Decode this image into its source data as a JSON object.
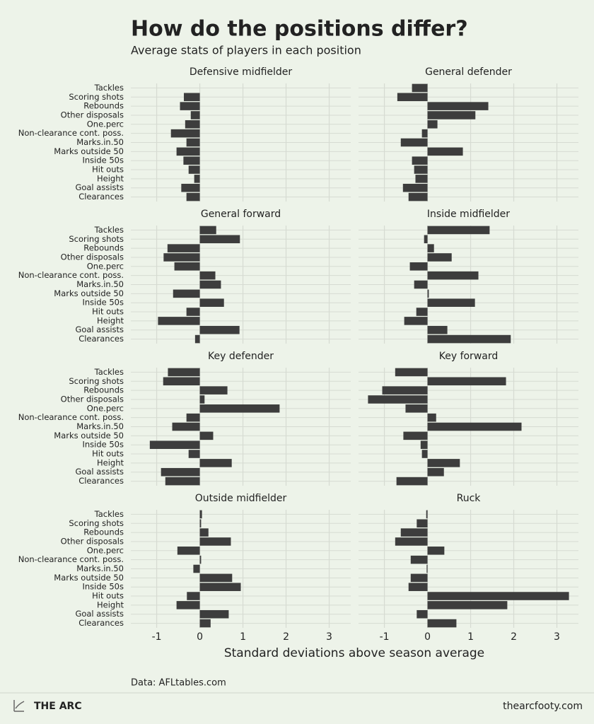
{
  "chart_data": {
    "type": "bar",
    "orientation": "horizontal",
    "title": "How do the positions differ?",
    "subtitle": "Average stats of players in each position",
    "xlabel": "Standard deviations above season average",
    "source": "Data: AFLtables.com",
    "brand": "THE ARC",
    "url": "thearcfooty.com",
    "color": "#3d3d3d",
    "grid": true,
    "categories": [
      "Tackles",
      "Scoring shots",
      "Rebounds",
      "Other disposals",
      "One.perc",
      "Non-clearance cont. poss.",
      "Marks.in.50",
      "Marks outside 50",
      "Inside 50s",
      "Hit outs",
      "Height",
      "Goal assists",
      "Clearances"
    ],
    "xlim": [
      -1.6,
      3.5
    ],
    "xticks": [
      -1,
      0,
      1,
      2,
      3
    ],
    "panels": [
      {
        "title": "Defensive midfielder",
        "values": [
          0,
          -0.37,
          -0.46,
          -0.21,
          -0.34,
          -0.67,
          -0.31,
          -0.54,
          -0.38,
          -0.26,
          -0.13,
          -0.43,
          -0.31
        ]
      },
      {
        "title": "General defender",
        "values": [
          -0.36,
          -0.7,
          1.41,
          1.11,
          0.23,
          -0.13,
          -0.62,
          0.82,
          -0.36,
          -0.31,
          -0.28,
          -0.57,
          -0.44
        ]
      },
      {
        "title": "General forward",
        "values": [
          0.38,
          0.93,
          -0.75,
          -0.84,
          -0.59,
          0.36,
          0.49,
          -0.62,
          0.56,
          -0.31,
          -0.97,
          0.92,
          -0.11
        ]
      },
      {
        "title": "Inside midfielder",
        "values": [
          1.44,
          -0.08,
          0.15,
          0.56,
          -0.41,
          1.18,
          -0.31,
          0.03,
          1.1,
          -0.26,
          -0.54,
          0.46,
          1.93
        ]
      },
      {
        "title": "Key defender",
        "values": [
          -0.74,
          -0.85,
          0.64,
          0.11,
          1.85,
          -0.31,
          -0.64,
          0.31,
          -1.16,
          -0.26,
          0.74,
          -0.9,
          -0.8
        ]
      },
      {
        "title": "Key forward",
        "values": [
          -0.75,
          1.82,
          -1.05,
          -1.38,
          -0.51,
          0.2,
          2.18,
          -0.56,
          -0.16,
          -0.13,
          0.75,
          0.38,
          -0.72
        ]
      },
      {
        "title": "Outside midfielder",
        "values": [
          0.05,
          0.03,
          0.2,
          0.72,
          -0.52,
          0.03,
          -0.15,
          0.75,
          0.95,
          -0.3,
          -0.54,
          0.67,
          0.25
        ]
      },
      {
        "title": "Ruck",
        "values": [
          -0.03,
          -0.25,
          -0.62,
          -0.75,
          0.39,
          -0.39,
          -0.02,
          -0.39,
          -0.44,
          3.28,
          1.85,
          -0.25,
          0.67
        ]
      }
    ]
  }
}
